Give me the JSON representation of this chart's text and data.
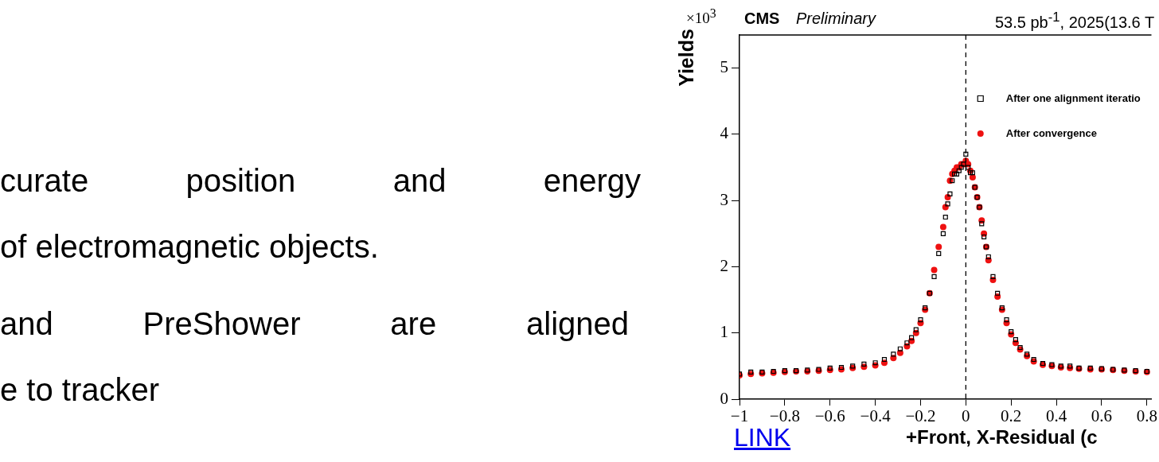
{
  "chart_data": {
    "type": "scatter",
    "title": "CMS",
    "subtitle": "Preliminary",
    "xlabel": "+Front, X-Residual (c",
    "ylabel": "Yields",
    "annotations": [
      "×10$^{3}$",
      "53.5 pb$^{-1}$, 2025(13.6 T",
      "curate position and energy",
      "of electromagnetic objects.",
      "and PreShower are aligned",
      "e to tracker",
      "LINK"
    ],
    "x": [
      -1,
      -0.95,
      -0.9,
      -0.85,
      -0.8,
      -0.75,
      -0.7,
      -0.65,
      -0.6,
      -0.55,
      -0.5,
      -0.45,
      -0.4,
      -0.36,
      -0.32,
      -0.29,
      -0.26,
      -0.24,
      -0.22,
      -0.2,
      -0.18,
      -0.16,
      -0.14,
      -0.12,
      -0.1,
      -0.09,
      -0.08,
      -0.07,
      -0.06,
      -0.05,
      -0.04,
      -0.03,
      -0.02,
      -0.01,
      0,
      0.01,
      0.02,
      0.03,
      0.04,
      0.05,
      0.06,
      0.07,
      0.08,
      0.09,
      0.1,
      0.12,
      0.14,
      0.16,
      0.18,
      0.2,
      0.22,
      0.24,
      0.27,
      0.3,
      0.34,
      0.38,
      0.42,
      0.46,
      0.5,
      0.55,
      0.6,
      0.65,
      0.7,
      0.75,
      0.8
    ],
    "series": [
      {
        "name": "After one alignment iteratio",
        "color": "#000000",
        "marker": "square",
        "values": [
          0.38,
          0.41,
          0.41,
          0.42,
          0.43,
          0.43,
          0.44,
          0.45,
          0.47,
          0.48,
          0.5,
          0.53,
          0.55,
          0.6,
          0.68,
          0.76,
          0.85,
          0.93,
          1.05,
          1.2,
          1.38,
          1.6,
          1.85,
          2.2,
          2.5,
          2.75,
          2.95,
          3.1,
          3.3,
          3.4,
          3.4,
          3.45,
          3.5,
          3.55,
          3.7,
          3.5,
          3.42,
          3.42,
          3.2,
          3.05,
          2.9,
          2.65,
          2.45,
          2.3,
          2.15,
          1.85,
          1.6,
          1.38,
          1.2,
          1.02,
          0.9,
          0.78,
          0.68,
          0.6,
          0.54,
          0.52,
          0.5,
          0.5,
          0.47,
          0.47,
          0.46,
          0.45,
          0.44,
          0.43,
          0.42
        ]
      },
      {
        "name": "After convergence",
        "color": "#ee1111",
        "marker": "circle",
        "values": [
          0.36,
          0.38,
          0.39,
          0.4,
          0.41,
          0.42,
          0.42,
          0.43,
          0.44,
          0.45,
          0.47,
          0.49,
          0.51,
          0.55,
          0.62,
          0.7,
          0.8,
          0.88,
          1.0,
          1.15,
          1.35,
          1.6,
          1.95,
          2.3,
          2.6,
          2.9,
          3.05,
          3.3,
          3.4,
          3.45,
          3.5,
          3.5,
          3.55,
          3.55,
          3.6,
          3.55,
          3.45,
          3.35,
          3.2,
          3.05,
          2.9,
          2.7,
          2.5,
          2.3,
          2.1,
          1.8,
          1.55,
          1.35,
          1.15,
          0.98,
          0.85,
          0.75,
          0.65,
          0.57,
          0.52,
          0.5,
          0.48,
          0.47,
          0.46,
          0.45,
          0.45,
          0.44,
          0.43,
          0.42,
          0.41
        ]
      }
    ],
    "xlim": [
      -1,
      0.82
    ],
    "xticks": [
      {
        "value": -1,
        "label": "−1"
      },
      {
        "value": -0.8,
        "label": "−0.8"
      },
      {
        "value": -0.6,
        "label": "−0.6"
      },
      {
        "value": -0.4,
        "label": "−0.4"
      },
      {
        "value": -0.2,
        "label": "−0.2"
      },
      0,
      0.2,
      0.4,
      0.6,
      0.8
    ],
    "ylim": [
      0,
      5.5
    ],
    "yticks": [
      0,
      1,
      2,
      3,
      4,
      5
    ],
    "ref_lines": [
      {
        "axis": "x",
        "value": 0,
        "line_style": "dashed",
        "color": "#000000"
      }
    ],
    "legend": "top right",
    "grid": false
  }
}
